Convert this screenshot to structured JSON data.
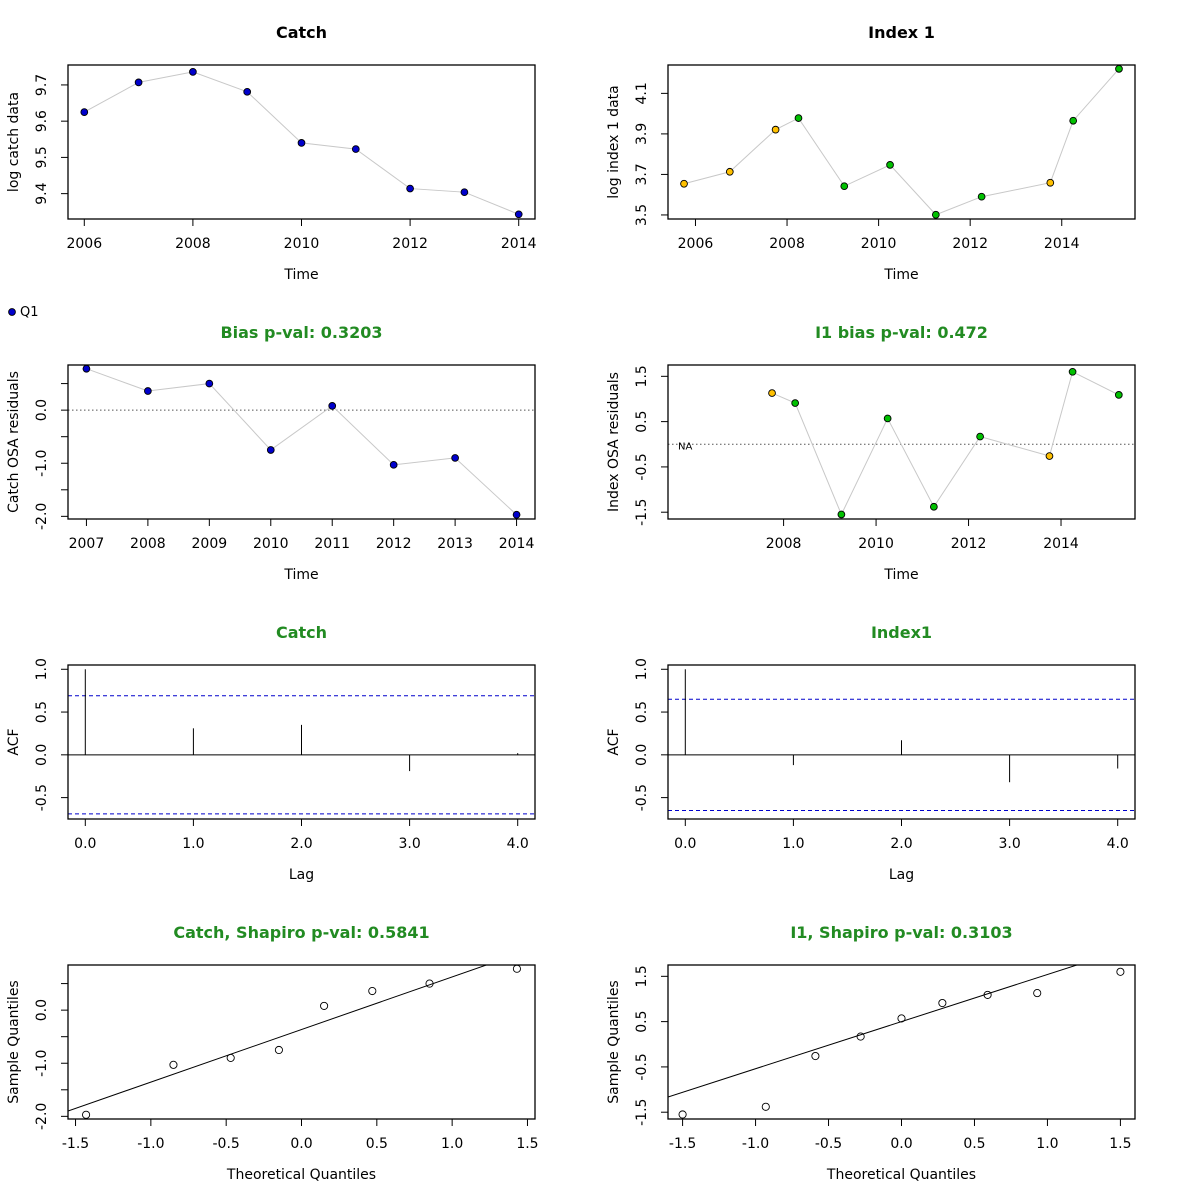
{
  "legend": {
    "label": "Q1",
    "color": "#0000cc"
  },
  "colors": {
    "title_green": "#228b22",
    "catch_point": "#0000cc",
    "index_green": "#00c000",
    "index_yellow": "#ffc000",
    "connector": "#c8c8c8",
    "acf_ci": "#0000cc"
  },
  "chart_data": [
    {
      "type": "scatter",
      "title": "Catch",
      "title_color": "black",
      "xlabel": "Time",
      "ylabel": "log catch data",
      "xlim": [
        2005.7,
        2014.3
      ],
      "ylim": [
        9.33,
        9.755
      ],
      "xticks": [
        2006,
        2008,
        2010,
        2012,
        2014
      ],
      "yticks": [
        9.4,
        9.5,
        9.6,
        9.7
      ],
      "connect": true,
      "series": [
        {
          "x": [
            2006,
            2007,
            2008,
            2009,
            2010,
            2011,
            2012,
            2013,
            2014
          ],
          "y": [
            9.625,
            9.707,
            9.736,
            9.681,
            9.54,
            9.523,
            9.414,
            9.404,
            9.343
          ],
          "color": "#0000cc"
        }
      ]
    },
    {
      "type": "scatter",
      "title": "Index 1",
      "title_color": "black",
      "xlabel": "Time",
      "ylabel": "log index 1 data",
      "xlim": [
        2005.4,
        2015.6
      ],
      "ylim": [
        3.48,
        4.24
      ],
      "xticks": [
        2006,
        2008,
        2010,
        2012,
        2014
      ],
      "yticks": [
        3.5,
        3.7,
        3.9,
        4.1
      ],
      "connect": true,
      "series": [
        {
          "x": [
            2005.75,
            2006.75,
            2007.75,
            2008.25,
            2009.25,
            2010.25,
            2011.25,
            2012.25,
            2013.75,
            2014.25,
            2015.25
          ],
          "y": [
            3.654,
            3.713,
            3.921,
            3.978,
            3.642,
            3.747,
            3.501,
            3.59,
            3.659,
            3.965,
            4.221
          ],
          "colors": [
            "#ffc000",
            "#ffc000",
            "#ffc000",
            "#00c000",
            "#00c000",
            "#00c000",
            "#00c000",
            "#00c000",
            "#ffc000",
            "#00c000",
            "#00c000"
          ]
        }
      ]
    },
    {
      "type": "scatter",
      "title": "Bias p-val: 0.3203",
      "title_color": "green",
      "xlabel": "Time",
      "ylabel": "Catch OSA residuals",
      "xlim": [
        2006.7,
        2014.3
      ],
      "ylim": [
        -2.05,
        0.85
      ],
      "xticks": [
        2007,
        2008,
        2009,
        2010,
        2011,
        2012,
        2013,
        2014
      ],
      "yticks": [
        -2.0,
        -1.5,
        -1.0,
        -0.5,
        0.0,
        0.5
      ],
      "ytick_labels": [
        "-2.0",
        "",
        "-1.0",
        "",
        "0.0",
        ""
      ],
      "hline": 0,
      "connect": true,
      "series": [
        {
          "x": [
            2007,
            2008,
            2009,
            2010,
            2011,
            2012,
            2013,
            2014
          ],
          "y": [
            0.78,
            0.36,
            0.5,
            -0.75,
            0.08,
            -1.03,
            -0.9,
            -1.97
          ],
          "color": "#0000cc"
        }
      ]
    },
    {
      "type": "scatter",
      "title": "I1 bias p-val: 0.472",
      "title_color": "green",
      "xlabel": "Time",
      "ylabel": "Index OSA residuals",
      "xlim": [
        2005.5,
        2015.6
      ],
      "ylim": [
        -1.65,
        1.75
      ],
      "xticks": [
        2008,
        2010,
        2012,
        2014
      ],
      "yticks": [
        -1.5,
        -0.5,
        0.5,
        1.5
      ],
      "hline": 0,
      "annotation": "NA",
      "connect": true,
      "series": [
        {
          "x": [
            2007.75,
            2008.25,
            2009.25,
            2010.25,
            2011.25,
            2012.25,
            2013.75,
            2014.25,
            2015.25
          ],
          "y": [
            1.13,
            0.91,
            -1.55,
            0.57,
            -1.38,
            0.17,
            -0.26,
            1.6,
            1.09
          ],
          "colors": [
            "#ffc000",
            "#00c000",
            "#00c000",
            "#00c000",
            "#00c000",
            "#00c000",
            "#ffc000",
            "#00c000",
            "#00c000"
          ]
        }
      ]
    },
    {
      "type": "bar",
      "title": "Catch",
      "title_color": "green",
      "xlabel": "Lag",
      "ylabel": "ACF",
      "xlim": [
        -0.16,
        4.16
      ],
      "ylim": [
        -0.75,
        1.05
      ],
      "xticks": [
        0,
        1,
        2,
        3,
        4
      ],
      "yticks": [
        -0.5,
        0.0,
        0.5,
        1.0
      ],
      "lags": [
        0,
        1,
        2,
        3,
        4
      ],
      "values": [
        1.0,
        0.31,
        0.35,
        -0.19,
        0.02
      ],
      "ci": 0.69
    },
    {
      "type": "bar",
      "title": "Index1",
      "title_color": "green",
      "xlabel": "Lag",
      "ylabel": "ACF",
      "xlim": [
        -0.16,
        4.16
      ],
      "ylim": [
        -0.75,
        1.05
      ],
      "xticks": [
        0,
        1,
        2,
        3,
        4
      ],
      "yticks": [
        -0.5,
        0.0,
        0.5,
        1.0
      ],
      "lags": [
        0,
        1,
        2,
        3,
        4
      ],
      "values": [
        1.0,
        -0.12,
        0.17,
        -0.32,
        -0.16
      ],
      "ci": 0.65
    },
    {
      "type": "scatter",
      "title": "Catch, Shapiro p-val: 0.5841",
      "title_color": "green",
      "xlabel": "Theoretical Quantiles",
      "ylabel": "Sample Quantiles",
      "xlim": [
        -1.55,
        1.55
      ],
      "ylim": [
        -2.05,
        0.85
      ],
      "xticks": [
        -1.5,
        -1.0,
        -0.5,
        0.0,
        0.5,
        1.0,
        1.5
      ],
      "yticks": [
        -2.0,
        -1.5,
        -1.0,
        -0.5,
        0.0,
        0.5
      ],
      "ytick_labels": [
        "-2.0",
        "",
        "-1.0",
        "",
        "0.0",
        ""
      ],
      "open_points": true,
      "qq_line": {
        "intercept": -0.365,
        "slope": 0.99
      },
      "series": [
        {
          "x": [
            -1.43,
            -0.85,
            -0.47,
            -0.15,
            0.15,
            0.47,
            0.85,
            1.43
          ],
          "y": [
            -1.97,
            -1.03,
            -0.9,
            -0.75,
            0.08,
            0.36,
            0.5,
            0.78
          ]
        }
      ]
    },
    {
      "type": "scatter",
      "title": "I1, Shapiro p-val: 0.3103",
      "title_color": "green",
      "xlabel": "Theoretical Quantiles",
      "ylabel": "Sample Quantiles",
      "xlim": [
        -1.6,
        1.6
      ],
      "ylim": [
        -1.65,
        1.75
      ],
      "xticks": [
        -1.5,
        -1.0,
        -0.5,
        0.0,
        0.5,
        1.0,
        1.5
      ],
      "yticks": [
        -1.5,
        -0.5,
        0.5,
        1.5
      ],
      "open_points": true,
      "qq_line": {
        "intercept": 0.5,
        "slope": 1.04
      },
      "series": [
        {
          "x": [
            -1.5,
            -0.93,
            -0.59,
            -0.28,
            0.0,
            0.28,
            0.59,
            0.93,
            1.5
          ],
          "y": [
            -1.55,
            -1.38,
            -0.26,
            0.17,
            0.57,
            0.91,
            1.09,
            1.13,
            1.6
          ]
        }
      ]
    }
  ]
}
